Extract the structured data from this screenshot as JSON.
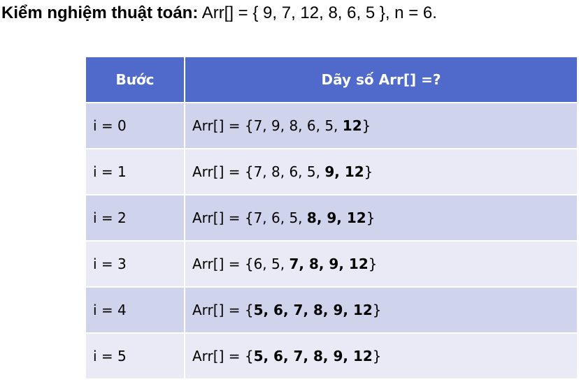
{
  "title": {
    "label": "Kiểm nghiệm thuật toán:",
    "text": " Arr[] = { 9, 7, 12, 8, 6, 5 }, n = 6."
  },
  "table": {
    "headers": [
      "Bước",
      "Dãy số Arr[] =?"
    ],
    "rows": [
      {
        "step": "i = 0",
        "prefix": "Arr[] = {",
        "plain": "7, 9, 8, 6, 5, ",
        "bold": "12",
        "suffix": "}"
      },
      {
        "step": "i = 1",
        "prefix": "Arr[] = {",
        "plain": "7, 8, 6, 5, ",
        "bold": "9, 12",
        "suffix": "}"
      },
      {
        "step": "i = 2",
        "prefix": "Arr[] = {",
        "plain": "7, 6, 5, ",
        "bold": "8, 9, 12",
        "suffix": "}"
      },
      {
        "step": "i = 3",
        "prefix": "Arr[] = {",
        "plain": "6, 5, ",
        "bold": "7, 8, 9, 12",
        "suffix": "}"
      },
      {
        "step": "i = 4",
        "prefix": "Arr[] = {",
        "plain": "",
        "bold": "5, 6, 7, 8, 9, 12",
        "suffix": "}"
      },
      {
        "step": "i = 5",
        "prefix": "Arr[] = {",
        "plain": "",
        "bold": "5, 6, 7, 8, 9, 12",
        "suffix": "}"
      }
    ]
  },
  "colors": {
    "header_bg": "#4f6acb",
    "row_dark": "#d0d3ec",
    "row_light": "#e9eaf6"
  }
}
